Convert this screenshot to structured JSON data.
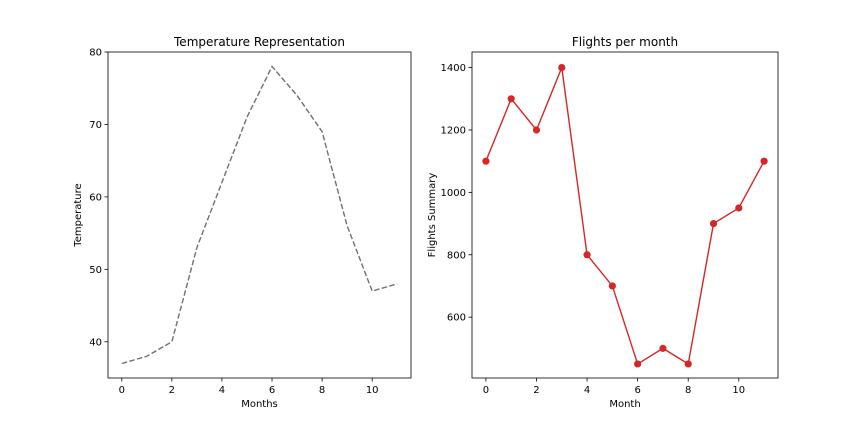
{
  "chart_data": [
    {
      "type": "line",
      "title": "Temperature Representation",
      "xlabel": "Months",
      "ylabel": "Temperature",
      "x": [
        0,
        1,
        2,
        3,
        4,
        5,
        6,
        7,
        8,
        9,
        10,
        11
      ],
      "series": [
        {
          "values": [
            37,
            38,
            40,
            53,
            62,
            71,
            78,
            74,
            69,
            56,
            47,
            48
          ],
          "color": "#707070",
          "line_style": "dashed",
          "markers": false
        }
      ],
      "xticks": [
        0,
        2,
        4,
        6,
        8,
        10
      ],
      "yticks": [
        40,
        50,
        60,
        70,
        80
      ],
      "xlim": [
        -0.55,
        11.55
      ],
      "ylim": [
        35,
        80
      ],
      "grid": false
    },
    {
      "type": "line",
      "title": "Flights per month",
      "xlabel": "Month",
      "ylabel": "Flights Summary",
      "x": [
        0,
        1,
        2,
        3,
        4,
        5,
        6,
        7,
        8,
        9,
        10,
        11
      ],
      "series": [
        {
          "values": [
            1100,
            1300,
            1200,
            1400,
            800,
            700,
            450,
            500,
            450,
            900,
            950,
            1100
          ],
          "color": "#d62728",
          "line_style": "solid",
          "markers": true
        }
      ],
      "xticks": [
        0,
        2,
        4,
        6,
        8,
        10
      ],
      "yticks": [
        600,
        800,
        1000,
        1200,
        1400
      ],
      "xlim": [
        -0.55,
        11.55
      ],
      "ylim": [
        405,
        1450
      ],
      "grid": false
    }
  ]
}
